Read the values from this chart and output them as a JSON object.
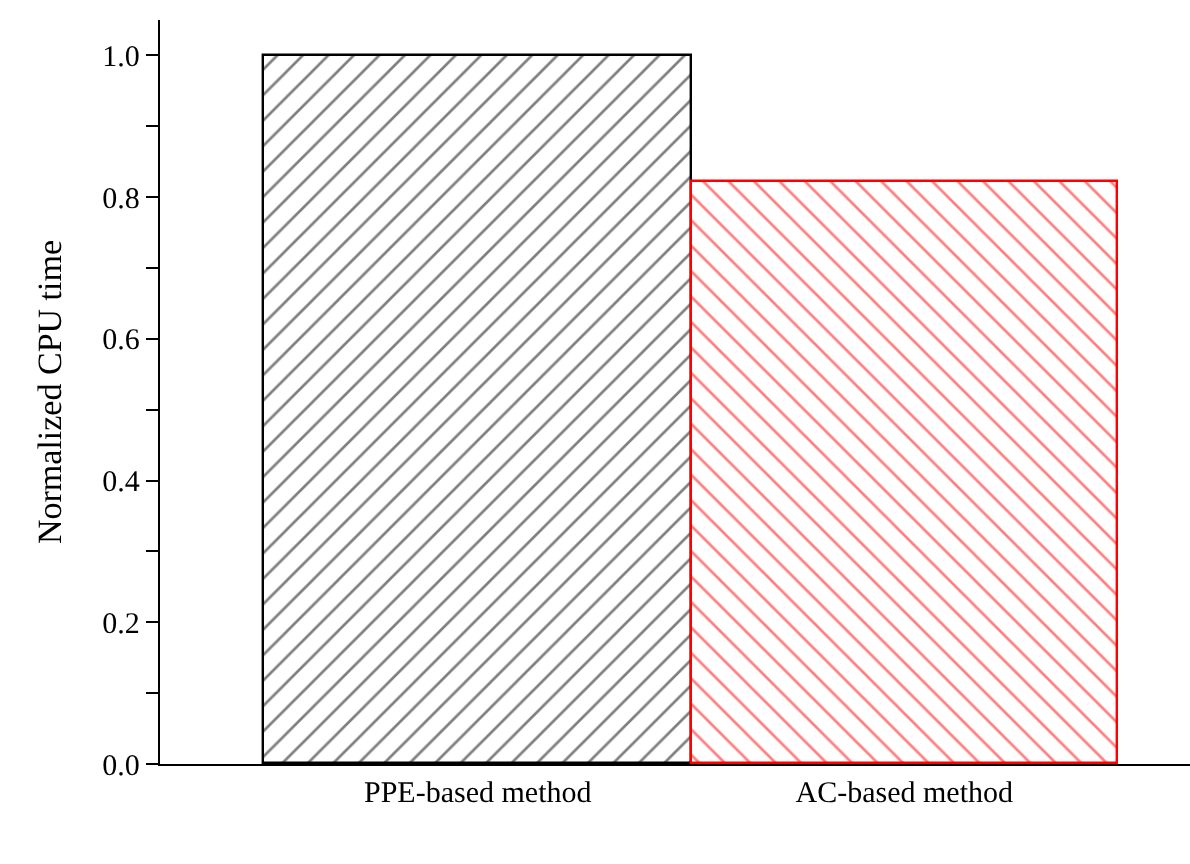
{
  "chart_data": {
    "type": "bar",
    "ylabel": "Normalized CPU time",
    "categories": [
      "PPE-based method",
      "AC-based method"
    ],
    "values": [
      1.0,
      0.82
    ],
    "colors": [
      "#000000",
      "#ff0000"
    ],
    "ylim": [
      0,
      1.05
    ],
    "yticks": [
      {
        "value": 0,
        "label": "0.0"
      },
      {
        "value": 0.1,
        "label": null
      },
      {
        "value": 0.2,
        "label": "0.2"
      },
      {
        "value": 0.3,
        "label": null
      },
      {
        "value": 0.4,
        "label": "0.4"
      },
      {
        "value": 0.5,
        "label": null
      },
      {
        "value": 0.6,
        "label": "0.6"
      },
      {
        "value": 0.7,
        "label": null
      },
      {
        "value": 0.8,
        "label": "0.8"
      },
      {
        "value": 0.9,
        "label": null
      },
      {
        "value": 1,
        "label": "1.0"
      }
    ]
  }
}
